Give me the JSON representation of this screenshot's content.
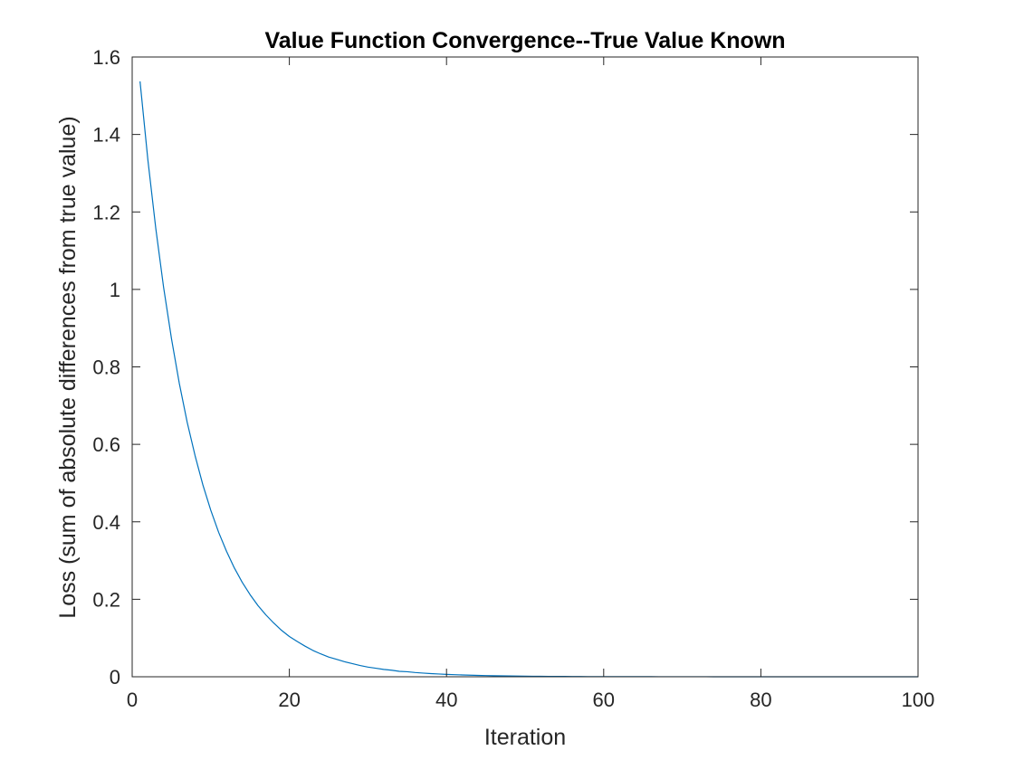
{
  "chart_data": {
    "type": "line",
    "title": "Value Function Convergence--True Value Known",
    "xlabel": "Iteration",
    "ylabel": "Loss (sum of absolute differences from true value)",
    "xlim": [
      0,
      100
    ],
    "ylim": [
      0,
      1.6
    ],
    "xticks": [
      0,
      20,
      40,
      60,
      80,
      100
    ],
    "yticks": [
      0,
      0.2,
      0.4,
      0.6,
      0.8,
      1,
      1.2,
      1.4,
      1.6
    ],
    "xtick_labels": [
      "0",
      "20",
      "40",
      "60",
      "80",
      "100"
    ],
    "ytick_labels": [
      "0",
      "0.2",
      "0.4",
      "0.6",
      "0.8",
      "1",
      "1.2",
      "1.4",
      "1.6"
    ],
    "grid": false,
    "box": true,
    "series_color": "#0072BD",
    "axis_color": "#262626",
    "series": [
      {
        "x": [
          1,
          2,
          3,
          4,
          5,
          6,
          7,
          8,
          9,
          10,
          11,
          12,
          13,
          14,
          15,
          16,
          17,
          18,
          19,
          20,
          21,
          22,
          23,
          24,
          25,
          26,
          27,
          28,
          29,
          30,
          31,
          32,
          33,
          34,
          35,
          36,
          37,
          38,
          39,
          40,
          41,
          42,
          43,
          44,
          45,
          46,
          47,
          48,
          49,
          50,
          51,
          52,
          53,
          54,
          55,
          56,
          57,
          58,
          59,
          60,
          61,
          62,
          63,
          64,
          65,
          66,
          67,
          68,
          69,
          70,
          71,
          72,
          73,
          74,
          75,
          76,
          77,
          78,
          79,
          80,
          81,
          82,
          83,
          84,
          85,
          86,
          87,
          88,
          89,
          90,
          91,
          92,
          93,
          94,
          95,
          96,
          97,
          98,
          99,
          100
        ],
        "values": [
          1.537,
          1.334,
          1.158,
          1.005,
          0.873,
          0.757,
          0.657,
          0.571,
          0.495,
          0.43,
          0.373,
          0.324,
          0.281,
          0.244,
          0.212,
          0.184,
          0.16,
          0.139,
          0.12,
          0.104,
          0.091,
          0.079,
          0.068,
          0.059,
          0.051,
          0.045,
          0.039,
          0.034,
          0.029,
          0.025,
          0.022,
          0.019,
          0.017,
          0.014,
          0.013,
          0.011,
          0.0095,
          0.0082,
          0.0071,
          0.0062,
          0.0054,
          0.0047,
          0.0041,
          0.0035,
          0.0031,
          0.0027,
          0.0023,
          0.002,
          0.0017,
          0.0015,
          0.0013,
          0.0011,
          0.001,
          0.0009,
          0.0008,
          0.0007,
          0.0006,
          0.0005,
          0.0004,
          0.0004,
          0.0003,
          0.0003,
          0.0002,
          0.0002,
          0.0002,
          0.0002,
          0.0001,
          0.0001,
          0.0001,
          0.0001,
          0.0001,
          0.0001,
          0.0001,
          0.0,
          0.0,
          0.0,
          0.0,
          0.0,
          0.0,
          0.0,
          0.0,
          0.0,
          0.0,
          0.0,
          0.0,
          0.0,
          0.0,
          0.0,
          0.0,
          0.0,
          0.0,
          0.0,
          0.0,
          0.0,
          0.0,
          0.0,
          0.0,
          0.0,
          0.0,
          0.0
        ]
      }
    ]
  }
}
